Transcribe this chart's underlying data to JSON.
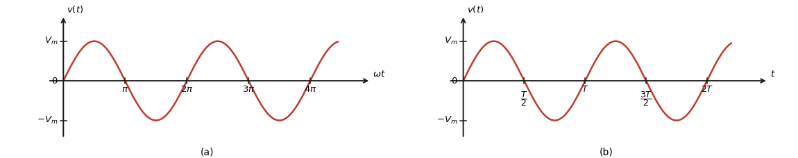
{
  "fig_width": 11.5,
  "fig_height": 2.29,
  "dpi": 100,
  "sine_color": "#c0392b",
  "sine_linewidth": 1.8,
  "axis_color": "#1a1a1a",
  "axis_linewidth": 1.4,
  "tick_linewidth": 1.1,
  "label_fontsize": 9.5,
  "caption_fontsize": 10,
  "background": "#ffffff",
  "subplot_a": {
    "caption": "(a)"
  },
  "subplot_b": {
    "caption": "(b)"
  }
}
